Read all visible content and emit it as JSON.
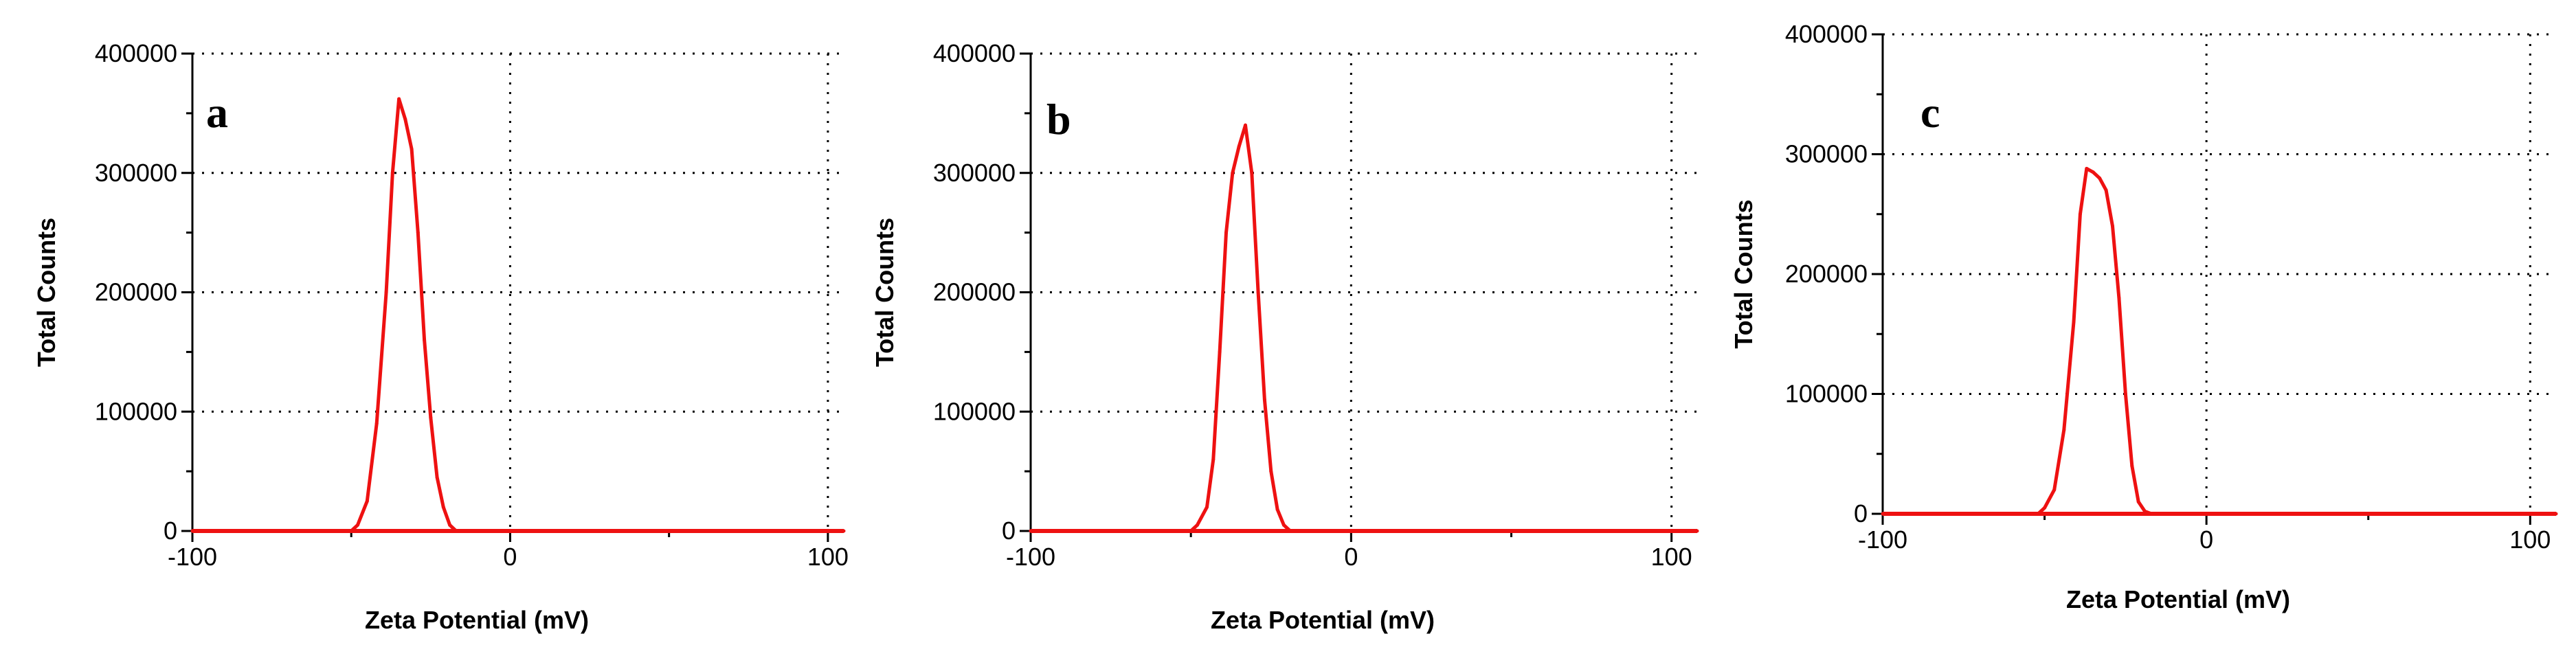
{
  "colors": {
    "series": "#ee1111",
    "axis": "#000000",
    "background": "#ffffff"
  },
  "chart_data": [
    {
      "type": "line",
      "panel_label": "a",
      "xlabel": "Zeta Potential (mV)",
      "ylabel": "Total Counts",
      "xlim": [
        -100,
        105
      ],
      "ylim": [
        0,
        400000
      ],
      "xticks": [
        -100,
        0,
        100
      ],
      "yticks": [
        0,
        100000,
        200000,
        300000,
        400000
      ],
      "grid": true,
      "series": [
        {
          "x": [
            -100,
            -50,
            -48,
            -45,
            -42,
            -39,
            -37,
            -35,
            -33,
            -31,
            -29,
            -27,
            -25,
            -23,
            -21,
            -19,
            -17,
            105
          ],
          "y": [
            0,
            0,
            5000,
            25000,
            90000,
            200000,
            300000,
            362000,
            345000,
            320000,
            250000,
            160000,
            95000,
            45000,
            20000,
            5000,
            0,
            0
          ]
        }
      ]
    },
    {
      "type": "line",
      "panel_label": "b",
      "xlabel": "Zeta Potential (mV)",
      "ylabel": "Total Counts",
      "xlim": [
        -100,
        108
      ],
      "ylim": [
        0,
        400000
      ],
      "xticks": [
        -100,
        0,
        100
      ],
      "yticks": [
        0,
        100000,
        200000,
        300000,
        400000
      ],
      "grid": true,
      "series": [
        {
          "x": [
            -100,
            -50,
            -48,
            -45,
            -43,
            -41,
            -39,
            -37,
            -35,
            -33,
            -31,
            -29,
            -27,
            -25,
            -23,
            -21,
            -19,
            108
          ],
          "y": [
            0,
            0,
            5000,
            20000,
            60000,
            150000,
            250000,
            300000,
            322000,
            340000,
            300000,
            200000,
            110000,
            50000,
            18000,
            5000,
            0,
            0
          ]
        }
      ]
    },
    {
      "type": "line",
      "panel_label": "c",
      "xlabel": "Zeta Potential (mV)",
      "ylabel": "Total Counts",
      "xlim": [
        -100,
        108
      ],
      "ylim": [
        0,
        400000
      ],
      "xticks": [
        -100,
        0,
        100
      ],
      "yticks": [
        0,
        100000,
        200000,
        300000,
        400000
      ],
      "grid": true,
      "series": [
        {
          "x": [
            -100,
            -52,
            -50,
            -47,
            -44,
            -41,
            -39,
            -37,
            -35,
            -33,
            -31,
            -29,
            -27,
            -25,
            -23,
            -21,
            -19,
            -17,
            108
          ],
          "y": [
            0,
            0,
            5000,
            20000,
            70000,
            160000,
            250000,
            288000,
            285000,
            280000,
            270000,
            240000,
            180000,
            100000,
            40000,
            10000,
            2000,
            0,
            0
          ]
        }
      ]
    }
  ]
}
